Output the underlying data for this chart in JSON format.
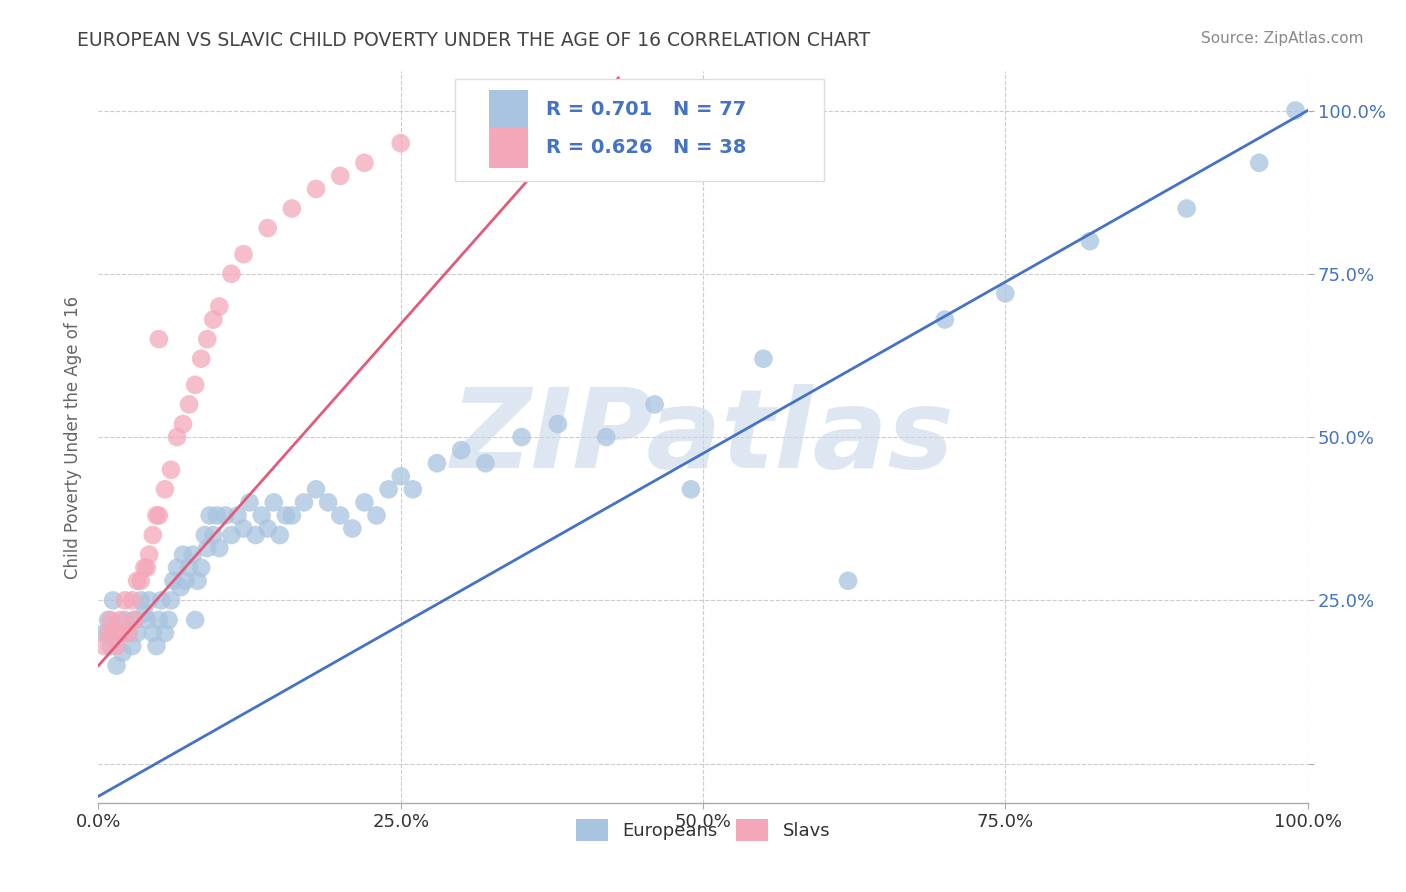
{
  "title": "EUROPEAN VS SLAVIC CHILD POVERTY UNDER THE AGE OF 16 CORRELATION CHART",
  "source": "Source: ZipAtlas.com",
  "ylabel": "Child Poverty Under the Age of 16",
  "xlim": [
    0,
    1
  ],
  "ylim": [
    -0.06,
    1.06
  ],
  "xticks": [
    0.0,
    0.25,
    0.5,
    0.75,
    1.0
  ],
  "yticks": [
    0.0,
    0.25,
    0.5,
    0.75,
    1.0
  ],
  "xticklabels": [
    "0.0%",
    "25.0%",
    "50.0%",
    "75.0%",
    "100.0%"
  ],
  "yticklabels": [
    "",
    "25.0%",
    "50.0%",
    "75.0%",
    "100.0%"
  ],
  "european_R": 0.701,
  "european_N": 77,
  "slav_R": 0.626,
  "slav_N": 38,
  "european_color": "#a8c4e0",
  "slav_color": "#f4a7b9",
  "european_line_color": "#4472C4",
  "slav_line_color": "#E05C7A",
  "watermark": "ZIPatlas",
  "watermark_color": "#c8d8e8",
  "background_color": "#ffffff",
  "grid_color": "#cccccc",
  "title_color": "#444444",
  "legend_R_color": "#4472C4",
  "tick_color_right": "#4472C4",
  "tick_color_bottom": "#333333",
  "european_regline": [
    [
      0.0,
      -0.05
    ],
    [
      1.0,
      1.0
    ]
  ],
  "slav_regline": [
    [
      0.0,
      0.15
    ],
    [
      0.43,
      1.05
    ]
  ],
  "europeans_x": [
    0.005,
    0.008,
    0.01,
    0.012,
    0.015,
    0.018,
    0.02,
    0.022,
    0.025,
    0.028,
    0.03,
    0.032,
    0.035,
    0.038,
    0.04,
    0.042,
    0.045,
    0.048,
    0.05,
    0.052,
    0.055,
    0.058,
    0.06,
    0.062,
    0.065,
    0.068,
    0.07,
    0.072,
    0.075,
    0.078,
    0.08,
    0.082,
    0.085,
    0.088,
    0.09,
    0.092,
    0.095,
    0.098,
    0.1,
    0.105,
    0.11,
    0.115,
    0.12,
    0.125,
    0.13,
    0.135,
    0.14,
    0.145,
    0.15,
    0.155,
    0.16,
    0.17,
    0.18,
    0.19,
    0.2,
    0.21,
    0.22,
    0.23,
    0.24,
    0.25,
    0.26,
    0.28,
    0.3,
    0.32,
    0.35,
    0.38,
    0.42,
    0.46,
    0.49,
    0.55,
    0.62,
    0.7,
    0.75,
    0.82,
    0.9,
    0.96,
    0.99
  ],
  "europeans_y": [
    0.2,
    0.22,
    0.18,
    0.25,
    0.15,
    0.2,
    0.17,
    0.22,
    0.2,
    0.18,
    0.22,
    0.2,
    0.25,
    0.23,
    0.22,
    0.25,
    0.2,
    0.18,
    0.22,
    0.25,
    0.2,
    0.22,
    0.25,
    0.28,
    0.3,
    0.27,
    0.32,
    0.28,
    0.3,
    0.32,
    0.22,
    0.28,
    0.3,
    0.35,
    0.33,
    0.38,
    0.35,
    0.38,
    0.33,
    0.38,
    0.35,
    0.38,
    0.36,
    0.4,
    0.35,
    0.38,
    0.36,
    0.4,
    0.35,
    0.38,
    0.38,
    0.4,
    0.42,
    0.4,
    0.38,
    0.36,
    0.4,
    0.38,
    0.42,
    0.44,
    0.42,
    0.46,
    0.48,
    0.46,
    0.5,
    0.52,
    0.5,
    0.55,
    0.42,
    0.62,
    0.28,
    0.68,
    0.72,
    0.8,
    0.85,
    0.92,
    1.0
  ],
  "slavs_x": [
    0.005,
    0.008,
    0.01,
    0.012,
    0.015,
    0.018,
    0.02,
    0.022,
    0.025,
    0.028,
    0.03,
    0.032,
    0.035,
    0.038,
    0.04,
    0.042,
    0.045,
    0.048,
    0.05,
    0.055,
    0.06,
    0.065,
    0.07,
    0.075,
    0.08,
    0.085,
    0.09,
    0.095,
    0.1,
    0.11,
    0.12,
    0.14,
    0.16,
    0.18,
    0.2,
    0.22,
    0.25,
    0.05
  ],
  "slavs_y": [
    0.18,
    0.2,
    0.22,
    0.2,
    0.18,
    0.22,
    0.2,
    0.25,
    0.2,
    0.25,
    0.22,
    0.28,
    0.28,
    0.3,
    0.3,
    0.32,
    0.35,
    0.38,
    0.38,
    0.42,
    0.45,
    0.5,
    0.52,
    0.55,
    0.58,
    0.62,
    0.65,
    0.68,
    0.7,
    0.75,
    0.78,
    0.82,
    0.85,
    0.88,
    0.9,
    0.92,
    0.95,
    0.65
  ]
}
